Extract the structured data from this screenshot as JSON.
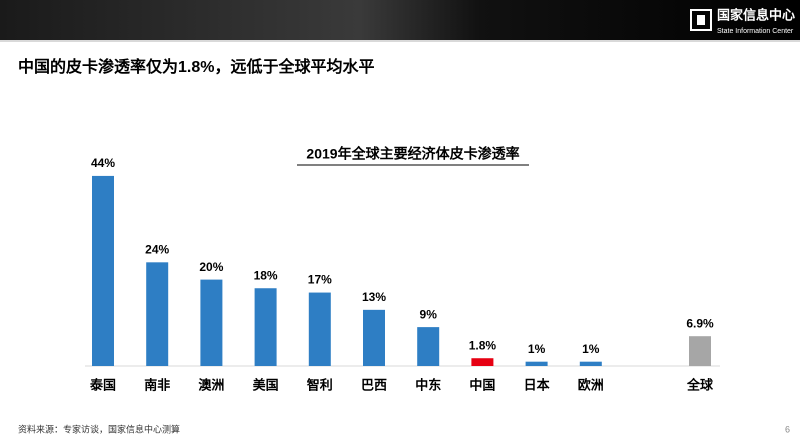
{
  "header": {
    "org_name": "国家信息中心",
    "org_name_en": "State Information Center"
  },
  "title": "中国的皮卡渗透率仅为1.8%，远低于全球平均水平",
  "chart_data": {
    "type": "bar",
    "title": "2019年全球主要经济体皮卡渗透率",
    "categories": [
      "泰国",
      "南非",
      "澳洲",
      "美国",
      "智利",
      "巴西",
      "中东",
      "中国",
      "日本",
      "欧洲",
      "全球"
    ],
    "values": [
      44,
      24,
      20,
      18,
      17,
      13,
      9,
      1.8,
      1,
      1,
      6.9
    ],
    "value_labels": [
      "44%",
      "24%",
      "20%",
      "18%",
      "17%",
      "13%",
      "9%",
      "1.8%",
      "1%",
      "1%",
      "6.9%"
    ],
    "colors": [
      "#2e7ec4",
      "#2e7ec4",
      "#2e7ec4",
      "#2e7ec4",
      "#2e7ec4",
      "#2e7ec4",
      "#2e7ec4",
      "#e60012",
      "#2e7ec4",
      "#2e7ec4",
      "#a6a6a6"
    ]
  },
  "footer": {
    "source": "资料来源：专家访谈，国家信息中心测算",
    "page": "6"
  }
}
